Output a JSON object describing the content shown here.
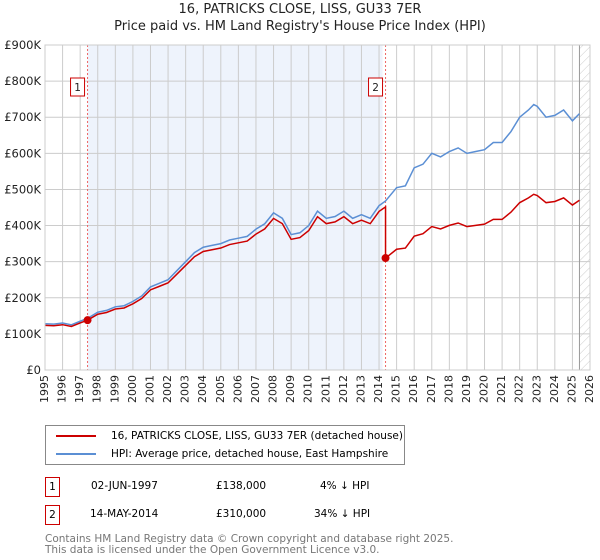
{
  "chart_data": {
    "type": "line",
    "title": "16, PATRICKS CLOSE, LISS, GU33 7ER",
    "subtitle": "Price paid vs. HM Land Registry's House Price Index (HPI)",
    "xlim": [
      1995,
      2026
    ],
    "ylim": [
      0,
      900000
    ],
    "x_ticks": [
      "1995",
      "1996",
      "1997",
      "1998",
      "1999",
      "2000",
      "2001",
      "2002",
      "2003",
      "2004",
      "2005",
      "2006",
      "2007",
      "2008",
      "2009",
      "2010",
      "2011",
      "2012",
      "2013",
      "2014",
      "2015",
      "2016",
      "2017",
      "2018",
      "2019",
      "2020",
      "2021",
      "2022",
      "2023",
      "2024",
      "2025",
      "2026"
    ],
    "y_ticks": [
      "£0",
      "£100K",
      "£200K",
      "£300K",
      "£400K",
      "£500K",
      "£600K",
      "£700K",
      "£800K",
      "£900K"
    ],
    "grid": true,
    "colors": {
      "property": "#cc0000",
      "hpi": "#5b8fd4",
      "shade": "#eef3fc"
    },
    "hpi_series": {
      "name": "HPI: Average price, detached house, East Hampshire",
      "x": [
        1995,
        1995.5,
        1996,
        1996.5,
        1997,
        1997.42,
        1998,
        1998.5,
        1999,
        1999.5,
        2000,
        2000.5,
        2001,
        2001.5,
        2002,
        2002.5,
        2003,
        2003.5,
        2004,
        2004.5,
        2005,
        2005.5,
        2006,
        2006.5,
        2007,
        2007.5,
        2008,
        2008.5,
        2009,
        2009.5,
        2010,
        2010.5,
        2011,
        2011.5,
        2012,
        2012.5,
        2013,
        2013.5,
        2014,
        2014.37,
        2015,
        2015.5,
        2016,
        2016.5,
        2017,
        2017.5,
        2018,
        2018.5,
        2019,
        2019.5,
        2020,
        2020.5,
        2021,
        2021.5,
        2022,
        2022.5,
        2022.8,
        2023,
        2023.5,
        2024,
        2024.5,
        2025,
        2025.4
      ],
      "y": [
        128,
        127,
        130,
        125,
        135,
        143,
        160,
        165,
        175,
        178,
        190,
        205,
        230,
        240,
        250,
        275,
        300,
        325,
        340,
        345,
        350,
        360,
        365,
        370,
        390,
        405,
        435,
        420,
        375,
        380,
        400,
        440,
        420,
        425,
        440,
        420,
        430,
        420,
        455,
        468,
        505,
        510,
        560,
        570,
        600,
        590,
        605,
        615,
        600,
        605,
        610,
        630,
        630,
        660,
        700,
        720,
        735,
        730,
        700,
        705,
        720,
        690,
        710
      ]
    },
    "property_series": {
      "name": "16, PATRICKS CLOSE, LISS, GU33 7ER (detached house)",
      "ratio_before": 0.965,
      "ratio_after": 0.662,
      "break_year": 2014.37
    },
    "sales": [
      {
        "label": "1",
        "x": 1997.42,
        "price": 138000,
        "date": "02-JUN-1997",
        "price_text": "£138,000",
        "hpi_text": "4% ↓ HPI"
      },
      {
        "label": "2",
        "x": 2014.37,
        "price": 310000,
        "date": "14-MAY-2014",
        "price_text": "£310,000",
        "hpi_text": "34% ↓ HPI"
      }
    ],
    "shaded_range": [
      1997.42,
      2014.2
    ],
    "hatched_from": 2025.4
  },
  "footer": {
    "line1": "Contains HM Land Registry data © Crown copyright and database right 2025.",
    "line2": "This data is licensed under the Open Government Licence v3.0."
  }
}
